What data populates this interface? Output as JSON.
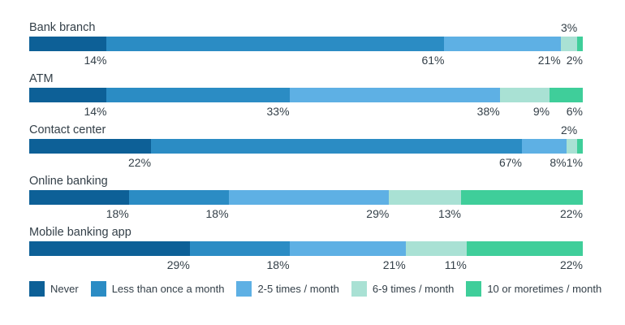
{
  "chart_data": {
    "type": "bar",
    "variant": "horizontal-stacked-percent",
    "title": "",
    "xlabel": "",
    "ylabel": "",
    "axis": {
      "x_min": 0,
      "x_max": 100,
      "grid": false,
      "unit": "%"
    },
    "categories": [
      "Bank branch",
      "ATM",
      "Contact center",
      "Online banking",
      "Mobile banking app"
    ],
    "series": [
      {
        "name": "Never",
        "color": "#0D6097",
        "values": [
          14,
          14,
          22,
          18,
          29
        ]
      },
      {
        "name": "Less than once a month",
        "color": "#2B8CC4",
        "values": [
          61,
          33,
          67,
          18,
          18
        ]
      },
      {
        "name": "2-5 times / month",
        "color": "#5EB0E4",
        "values": [
          21,
          38,
          8,
          29,
          21
        ]
      },
      {
        "name": "6-9 times / month",
        "color": "#A9E1D4",
        "values": [
          3,
          9,
          2,
          13,
          11
        ]
      },
      {
        "name": "10 or moretimes / month",
        "color": "#3FCE9A",
        "values": [
          2,
          6,
          1,
          22,
          22
        ]
      }
    ],
    "rows": [
      {
        "category": "Bank branch",
        "labels": [
          "14%",
          "61%",
          "21%",
          "3%",
          "2%"
        ],
        "label_positions": [
          "below",
          "below",
          "below",
          "above",
          "below"
        ]
      },
      {
        "category": "ATM",
        "labels": [
          "14%",
          "33%",
          "38%",
          "9%",
          "6%"
        ],
        "label_positions": [
          "below",
          "below",
          "below",
          "below",
          "below"
        ]
      },
      {
        "category": "Contact center",
        "labels": [
          "22%",
          "67%",
          "8%",
          "2%",
          "1%"
        ],
        "label_positions": [
          "below",
          "below",
          "below",
          "above",
          "below"
        ]
      },
      {
        "category": "Online banking",
        "labels": [
          "18%",
          "18%",
          "29%",
          "13%",
          "22%"
        ],
        "label_positions": [
          "below",
          "below",
          "below",
          "below",
          "below"
        ]
      },
      {
        "category": "Mobile banking app",
        "labels": [
          "29%",
          "18%",
          "21%",
          "11%",
          "22%"
        ],
        "label_positions": [
          "below",
          "below",
          "below",
          "below",
          "below"
        ]
      }
    ],
    "legend": {
      "position": "bottom",
      "items": [
        "Never",
        "Less than once a month",
        "2-5 times / month",
        "6-9 times / month",
        "10 or moretimes / month"
      ]
    }
  },
  "style": {
    "text_color": "#333F48",
    "background": "#ffffff"
  }
}
